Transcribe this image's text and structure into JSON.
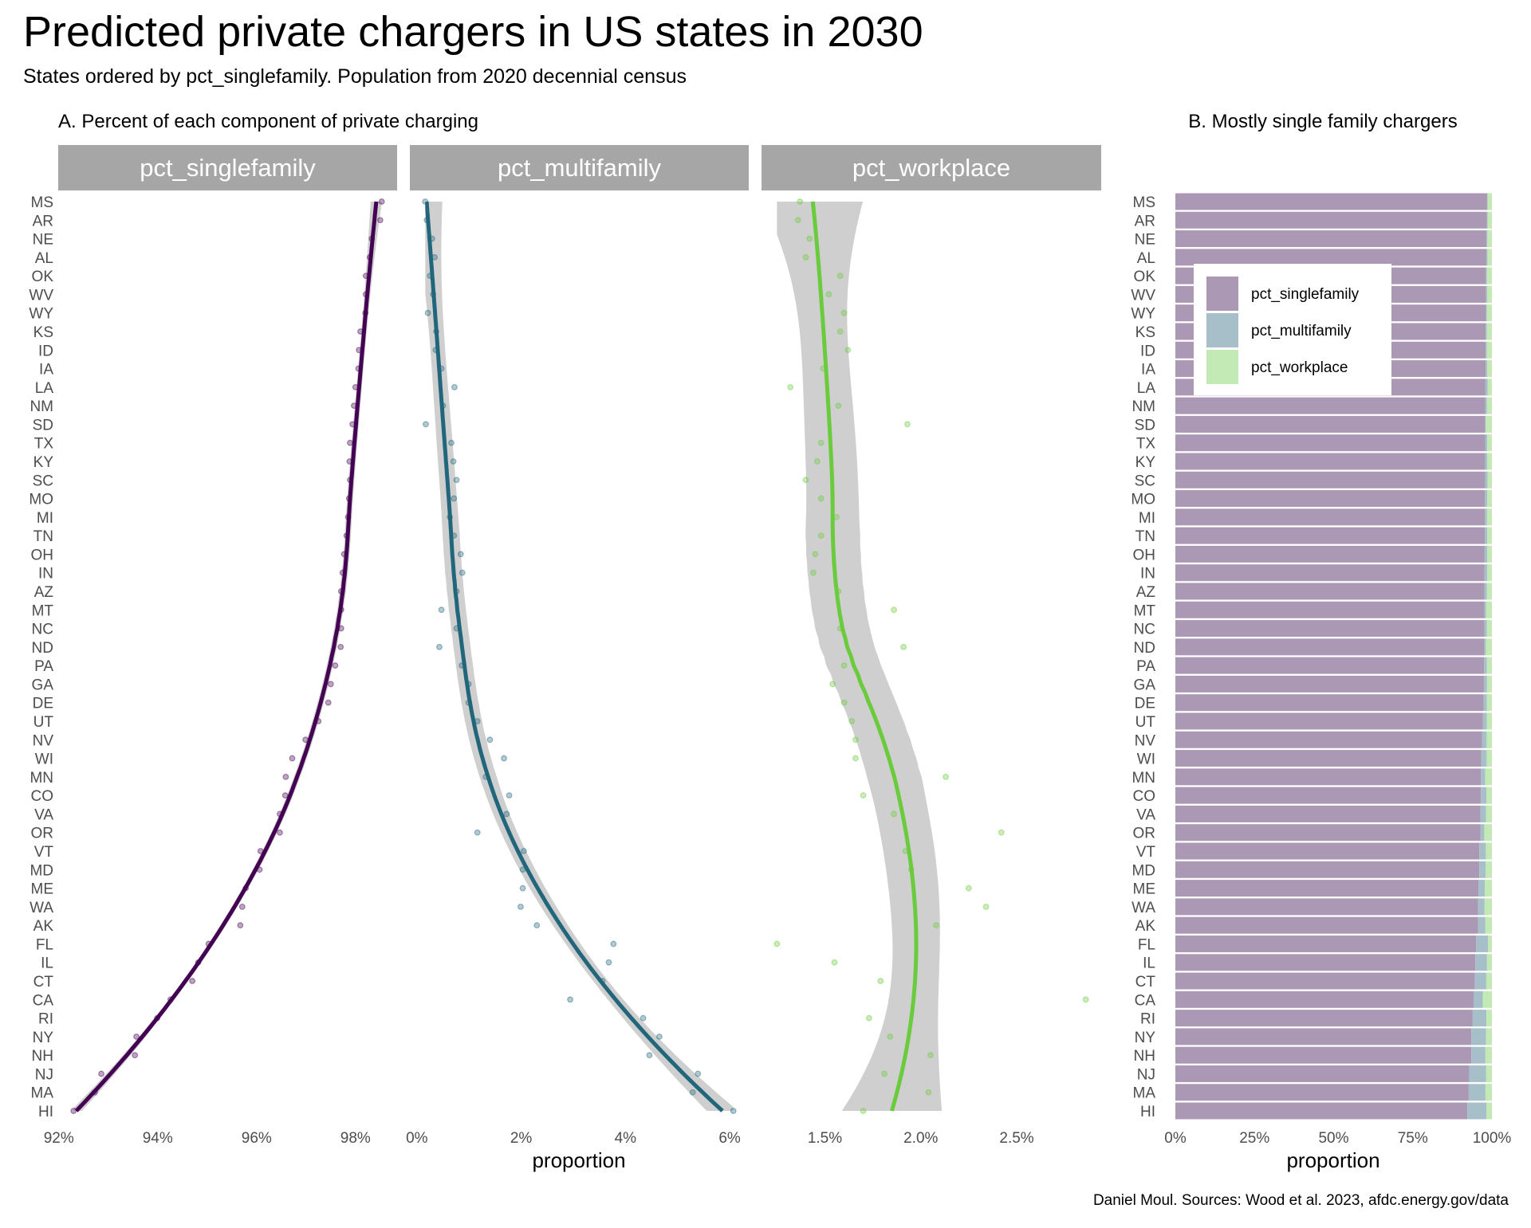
{
  "title": "Predicted private chargers in US states in 2030",
  "subtitle": "States ordered by pct_singlefamily. Population from 2020 decennial census",
  "caption": "Daniel Moul. Sources: Wood et al. 2023, afdc.energy.gov/data",
  "chart_data": [
    {
      "type": "scatter",
      "panel_title": "A. Percent of each component of private charging",
      "smooth": "loess with confidence band",
      "xlabel": "proportion",
      "categories": [
        "MS",
        "AR",
        "NE",
        "AL",
        "OK",
        "WV",
        "WY",
        "KS",
        "ID",
        "IA",
        "LA",
        "NM",
        "SD",
        "TX",
        "KY",
        "SC",
        "MO",
        "MI",
        "TN",
        "OH",
        "IN",
        "AZ",
        "MT",
        "NC",
        "ND",
        "PA",
        "GA",
        "DE",
        "UT",
        "NV",
        "WI",
        "MN",
        "CO",
        "VA",
        "OR",
        "VT",
        "MD",
        "ME",
        "WA",
        "AK",
        "FL",
        "IL",
        "CT",
        "CA",
        "RI",
        "NY",
        "NH",
        "NJ",
        "MA",
        "HI"
      ],
      "facets": [
        {
          "name": "pct_singlefamily",
          "color": "#440154",
          "ticks": [
            92,
            94,
            96,
            98
          ],
          "tick_labels": [
            "92%",
            "94%",
            "96%",
            "98%"
          ],
          "values": [
            98.53,
            98.5,
            98.33,
            98.29,
            98.21,
            98.21,
            98.2,
            98.1,
            98.07,
            98.06,
            98.0,
            97.97,
            97.94,
            97.89,
            97.88,
            97.89,
            97.87,
            97.85,
            97.82,
            97.77,
            97.74,
            97.71,
            97.71,
            97.71,
            97.7,
            97.59,
            97.5,
            97.45,
            97.25,
            96.99,
            96.72,
            96.59,
            96.58,
            96.47,
            96.47,
            96.08,
            96.06,
            95.78,
            95.71,
            95.67,
            95.03,
            94.82,
            94.7,
            94.26,
            93.99,
            93.57,
            93.54,
            92.86,
            92.73,
            92.3
          ]
        },
        {
          "name": "pct_multifamily",
          "color": "#22667c",
          "ticks": [
            0,
            2,
            4,
            6
          ],
          "tick_labels": [
            "0%",
            "2%",
            "4%",
            "6%"
          ],
          "values": [
            0.16,
            0.19,
            0.29,
            0.34,
            0.25,
            0.31,
            0.21,
            0.37,
            0.36,
            0.47,
            0.72,
            0.5,
            0.17,
            0.66,
            0.7,
            0.76,
            0.71,
            0.63,
            0.71,
            0.84,
            0.87,
            0.76,
            0.47,
            0.76,
            0.43,
            0.86,
            0.99,
            0.99,
            1.16,
            1.4,
            1.67,
            1.32,
            1.77,
            1.72,
            1.16,
            2.05,
            2.03,
            2.03,
            1.99,
            2.3,
            3.77,
            3.68,
            3.56,
            2.94,
            4.34,
            4.65,
            4.46,
            5.39,
            5.29,
            6.07
          ]
        },
        {
          "name": "pct_workplace",
          "color": "#6acb3c",
          "ticks": [
            1.5,
            2.0,
            2.5
          ],
          "tick_labels": [
            "1.5%",
            "2.0%",
            "2.5%"
          ],
          "values": [
            1.37,
            1.36,
            1.42,
            1.4,
            1.58,
            1.52,
            1.6,
            1.58,
            1.62,
            1.49,
            1.32,
            1.57,
            1.93,
            1.48,
            1.46,
            1.4,
            1.48,
            1.56,
            1.48,
            1.45,
            1.44,
            1.57,
            1.86,
            1.58,
            1.91,
            1.6,
            1.54,
            1.6,
            1.64,
            1.66,
            1.66,
            2.13,
            1.7,
            1.86,
            2.42,
            1.92,
            1.95,
            2.25,
            2.34,
            2.08,
            1.25,
            1.55,
            1.79,
            2.86,
            1.73,
            1.84,
            2.05,
            1.81,
            2.04,
            1.7
          ]
        }
      ]
    },
    {
      "type": "bar",
      "stacked": true,
      "orientation": "horizontal",
      "panel_title": "B. Mostly single family chargers",
      "xlabel": "proportion",
      "xlim": [
        0,
        100
      ],
      "ticks": [
        0,
        25,
        50,
        75,
        100
      ],
      "tick_labels": [
        "0%",
        "25%",
        "50%",
        "75%",
        "100%"
      ],
      "legend_position": "inside-top",
      "series": [
        {
          "name": "pct_singlefamily",
          "color": "#ab98b4"
        },
        {
          "name": "pct_multifamily",
          "color": "#a6bfc9"
        },
        {
          "name": "pct_workplace",
          "color": "#c3e9b4"
        }
      ],
      "values_from": "same categories and facet values as chart A"
    }
  ]
}
